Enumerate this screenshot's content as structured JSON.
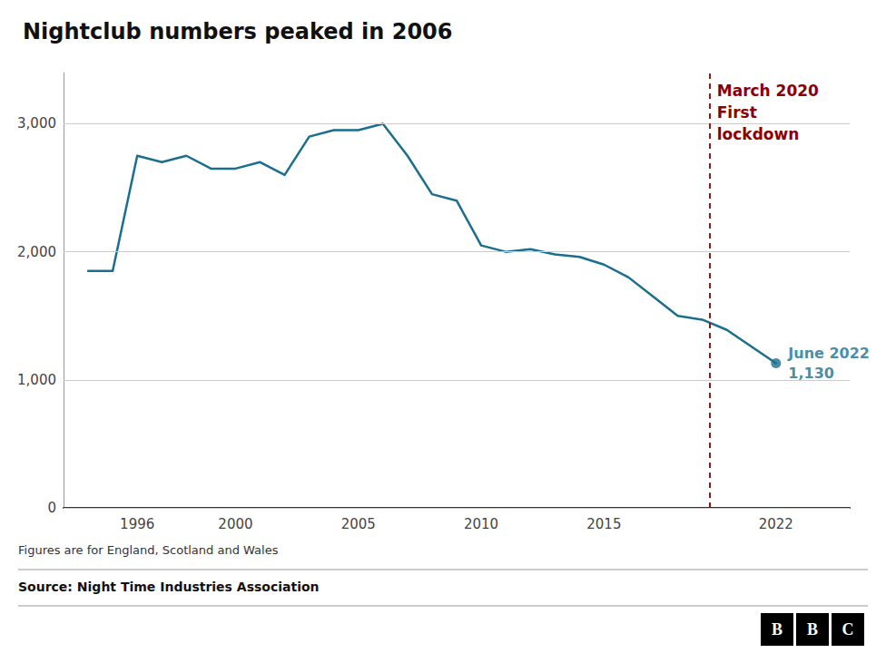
{
  "chart_data": {
    "type": "line",
    "title": "Nightclub numbers peaked in 2006",
    "x": [
      1994,
      1995,
      1996,
      1997,
      1998,
      1999,
      2000,
      2001,
      2002,
      2003,
      2004,
      2005,
      2006,
      2007,
      2008,
      2009,
      2010,
      2011,
      2012,
      2013,
      2014,
      2015,
      2016,
      2017,
      2018,
      2019,
      2020,
      2022
    ],
    "values": [
      1850,
      1850,
      2750,
      2700,
      2750,
      2650,
      2650,
      2700,
      2600,
      2900,
      2950,
      2950,
      3000,
      2750,
      2450,
      2400,
      2050,
      2000,
      2020,
      1980,
      1960,
      1900,
      1800,
      1650,
      1500,
      1470,
      1390,
      1130
    ],
    "color": "#1a6e8e",
    "xlim": [
      1993,
      2025
    ],
    "xticks": [
      1996,
      2000,
      2005,
      2010,
      2015,
      2022
    ],
    "ylim": [
      0,
      3400
    ],
    "yticks": [
      0,
      {
        "value": 1000,
        "label": "1,000"
      },
      {
        "value": 2000,
        "label": "2,000"
      },
      {
        "value": 3000,
        "label": "3,000"
      }
    ],
    "grid": true,
    "vlines": [
      {
        "x": 2019.3,
        "color": "#8b0000",
        "line_style": "dashed",
        "text": [
          "March 2020",
          "First",
          "lockdown"
        ]
      }
    ],
    "annotations": [
      {
        "x": 2022,
        "y": 1130,
        "color": "#1a6e8e",
        "marker": "circle",
        "text": [
          "June 2022",
          "1,130"
        ]
      }
    ],
    "footnotes": [
      "Figures are for England, Scotland and Wales",
      "Source: Night Time Industries Association"
    ],
    "logo": "BBC"
  }
}
